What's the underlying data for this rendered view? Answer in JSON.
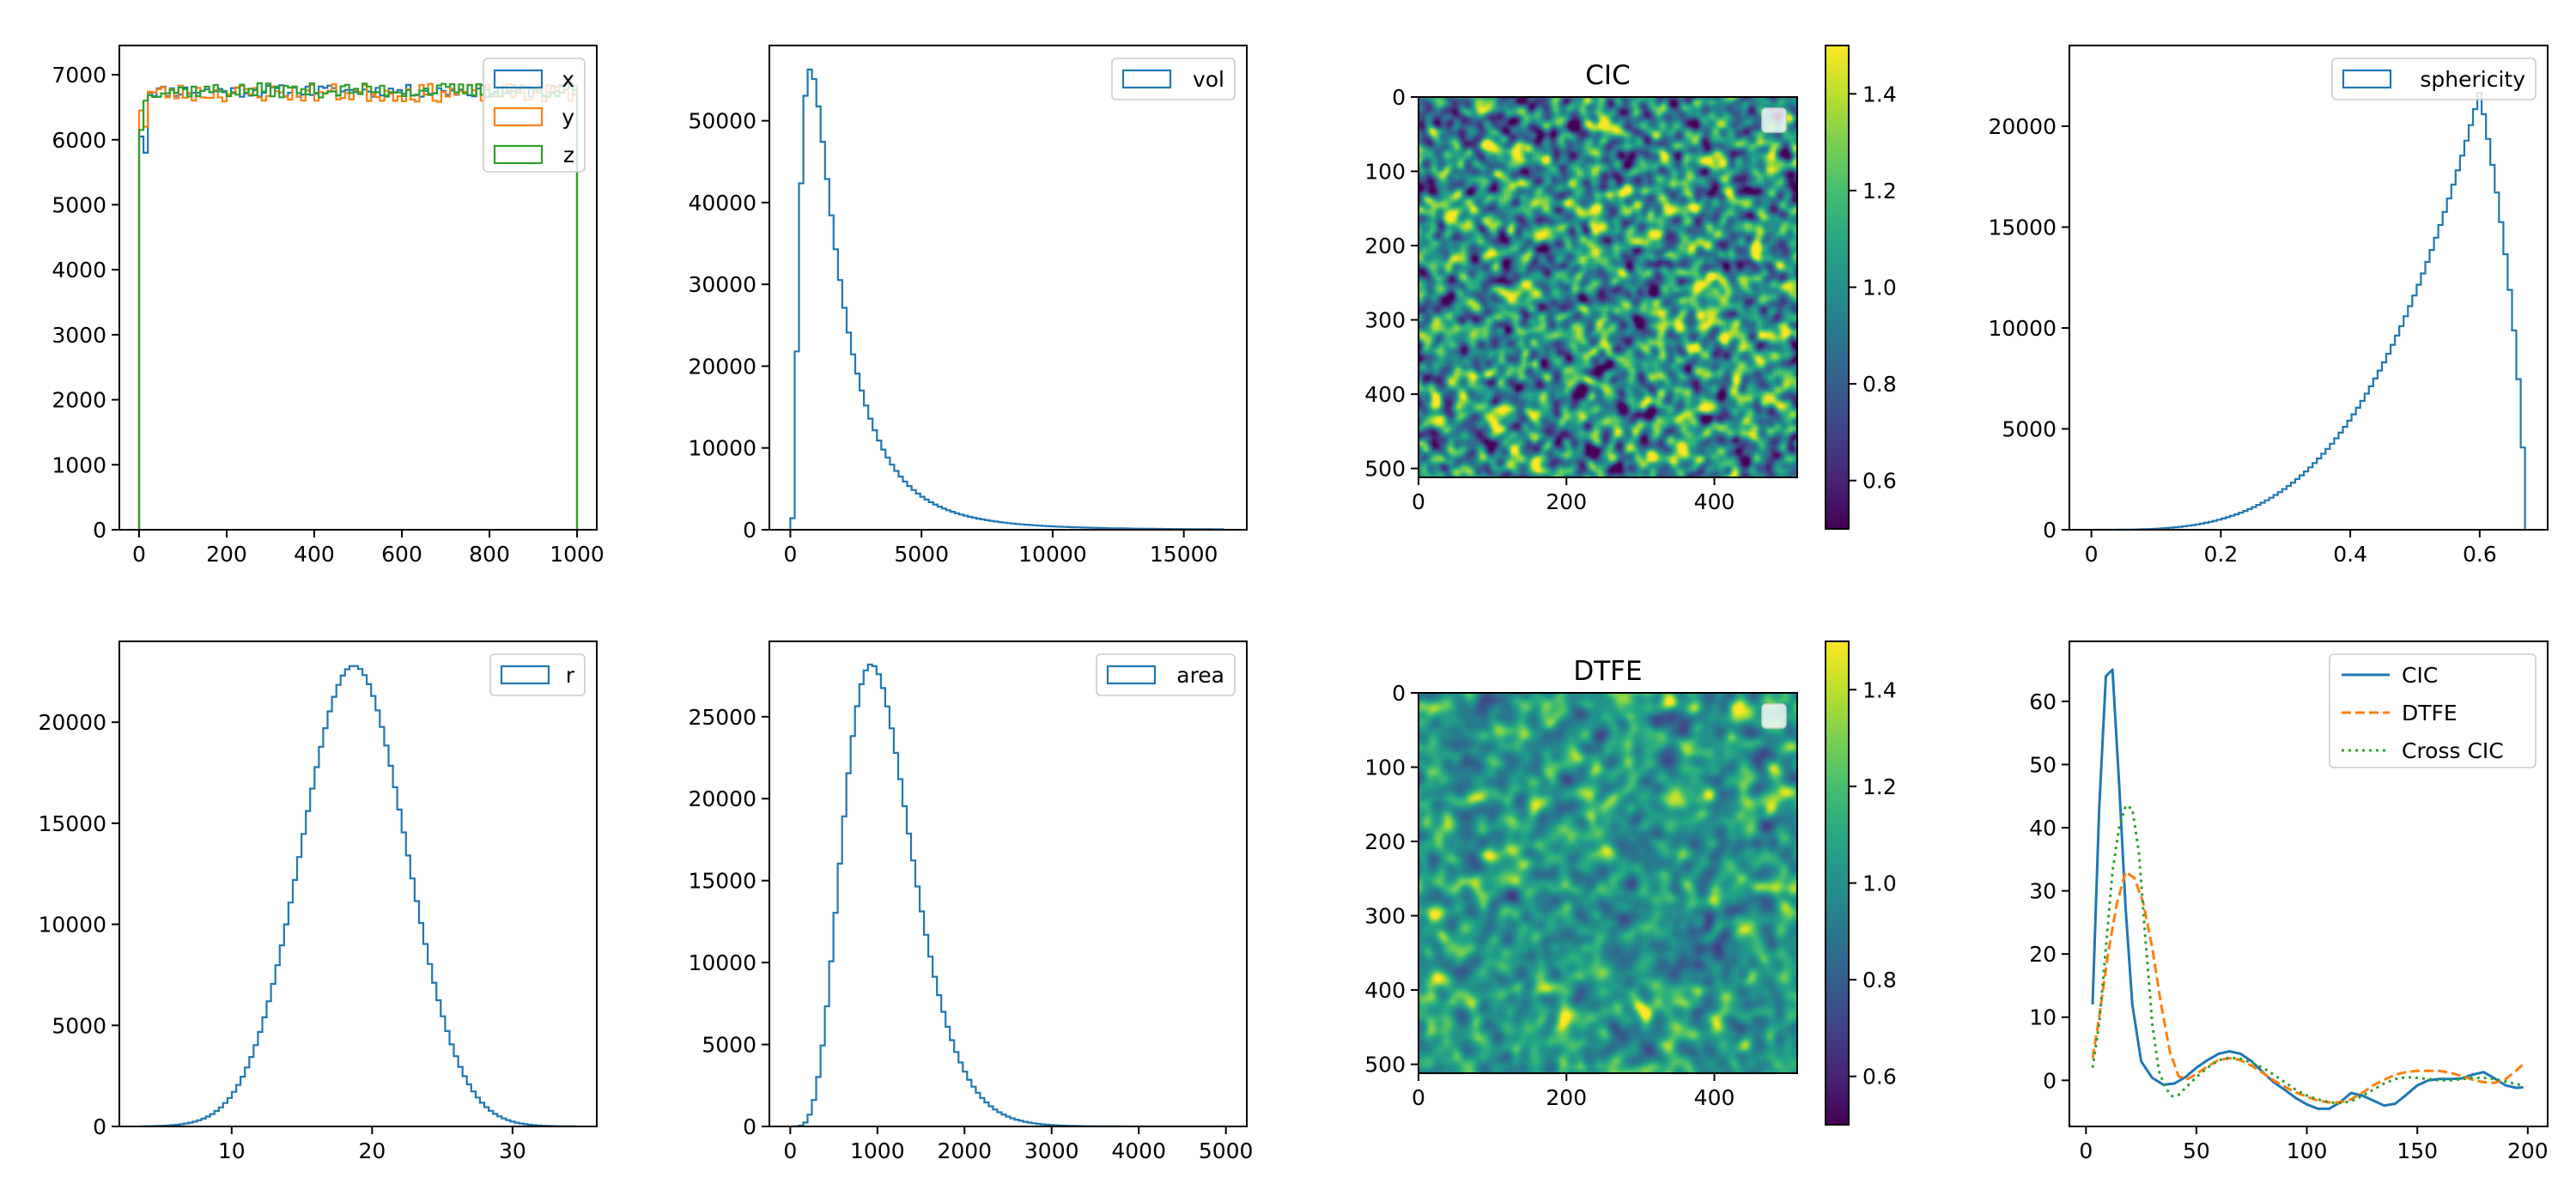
{
  "colors": {
    "blue": "#1f77b4",
    "orange": "#ff7f0e",
    "green": "#2ca02c"
  },
  "colormap": "viridis",
  "chart_data": [
    {
      "id": "p1",
      "type": "histogram-step",
      "series": [
        {
          "name": "x",
          "color": "#1f77b4",
          "x": [
            0,
            1000
          ],
          "plateau": 6750,
          "start": [
            6050,
            5800
          ],
          "noise": 95,
          "seed": 11
        },
        {
          "name": "y",
          "color": "#ff7f0e",
          "x": [
            0,
            1000
          ],
          "plateau": 6720,
          "start": [
            6450,
            6200
          ],
          "noise": 140,
          "seed": 23
        },
        {
          "name": "z",
          "color": "#2ca02c",
          "x": [
            0,
            1000
          ],
          "plateau": 6760,
          "start": [
            6150,
            6600
          ],
          "noise": 110,
          "seed": 37
        }
      ],
      "bins": 100,
      "xlim": [
        -45,
        1045
      ],
      "ylim": [
        0,
        7450
      ],
      "xticks": [
        0,
        200,
        400,
        600,
        800,
        1000
      ],
      "yticks": [
        0,
        1000,
        2000,
        3000,
        4000,
        5000,
        6000,
        7000
      ],
      "legend": "upper right"
    },
    {
      "id": "p2",
      "type": "histogram-step",
      "series": [
        {
          "name": "vol",
          "color": "#1f77b4",
          "x": [
            0,
            16500
          ],
          "shape": "lognormal",
          "peak_x": 500,
          "peak_y": 56300
        }
      ],
      "bins": 100,
      "xlim": [
        -800,
        17400
      ],
      "ylim": [
        0,
        59200
      ],
      "xticks": [
        0,
        5000,
        10000,
        15000
      ],
      "yticks": [
        0,
        10000,
        20000,
        30000,
        40000,
        50000
      ],
      "legend": "upper right"
    },
    {
      "id": "p3",
      "type": "heatmap",
      "title": "CIC",
      "xlim": [
        0,
        512
      ],
      "ylim": [
        512,
        0
      ],
      "xticks": [
        0,
        200,
        400
      ],
      "yticks": [
        0,
        100,
        200,
        300,
        400,
        500
      ],
      "colorbar": {
        "range": [
          0.5,
          1.5
        ],
        "ticks": [
          0.6,
          0.8,
          1.0,
          1.2,
          1.4
        ]
      },
      "field": {
        "mean": 1.0,
        "sd": 0.22,
        "grain": "fine",
        "seed": 101
      },
      "legend": "empty"
    },
    {
      "id": "p4",
      "type": "histogram-step",
      "series": [
        {
          "name": "sphericity",
          "color": "#1f77b4",
          "x": [
            0,
            0.67
          ],
          "shape": "skewed-left",
          "peak_x": 0.6,
          "peak_y": 21700
        }
      ],
      "bins": 100,
      "xlim": [
        -0.034,
        0.705
      ],
      "ylim": [
        0,
        24000
      ],
      "xticks": [
        0.0,
        0.2,
        0.4,
        0.6
      ],
      "yticks": [
        0,
        5000,
        10000,
        15000,
        20000
      ],
      "legend": "upper right"
    },
    {
      "id": "p5",
      "type": "histogram-step",
      "series": [
        {
          "name": "r",
          "color": "#1f77b4",
          "x": [
            3.5,
            34.5
          ],
          "shape": "gaussian",
          "mean": 18.7,
          "sd": 3.75,
          "peak_y": 22800
        }
      ],
      "bins": 100,
      "xlim": [
        2.0,
        36.0
      ],
      "ylim": [
        0,
        24000
      ],
      "xticks": [
        10,
        20,
        30
      ],
      "yticks": [
        0,
        5000,
        10000,
        15000,
        20000
      ],
      "legend": "upper right"
    },
    {
      "id": "p6",
      "type": "histogram-step",
      "series": [
        {
          "name": "area",
          "color": "#1f77b4",
          "x": [
            50,
            5000
          ],
          "shape": "skewed-right",
          "peak_x": 930,
          "peak_y": 28200
        }
      ],
      "bins": 100,
      "xlim": [
        -240,
        5240
      ],
      "ylim": [
        0,
        29600
      ],
      "xticks": [
        0,
        1000,
        2000,
        3000,
        4000,
        5000
      ],
      "yticks": [
        0,
        5000,
        10000,
        15000,
        20000,
        25000
      ],
      "legend": "upper right"
    },
    {
      "id": "p7",
      "type": "heatmap",
      "title": "DTFE",
      "xlim": [
        0,
        512
      ],
      "ylim": [
        512,
        0
      ],
      "xticks": [
        0,
        200,
        400
      ],
      "yticks": [
        0,
        100,
        200,
        300,
        400,
        500
      ],
      "colorbar": {
        "range": [
          0.5,
          1.5
        ],
        "ticks": [
          0.6,
          0.8,
          1.0,
          1.2,
          1.4
        ]
      },
      "field": {
        "mean": 1.03,
        "sd": 0.11,
        "grain": "smooth",
        "seed": 202
      },
      "legend": "empty"
    },
    {
      "id": "p8",
      "type": "line",
      "series": [
        {
          "name": "CIC",
          "color": "#1f77b4",
          "dash": "solid",
          "x": [
            3,
            6,
            9,
            12,
            15,
            18,
            21,
            25,
            30,
            35,
            40,
            45,
            50,
            55,
            60,
            65,
            70,
            75,
            80,
            85,
            90,
            95,
            100,
            105,
            110,
            115,
            120,
            125,
            130,
            135,
            140,
            145,
            150,
            155,
            160,
            165,
            170,
            175,
            180,
            185,
            190,
            195,
            198
          ],
          "y": [
            12,
            43,
            64,
            65,
            47,
            27,
            12,
            3,
            0.4,
            -0.7,
            -0.5,
            0.5,
            2,
            3.2,
            4.2,
            4.6,
            4.2,
            3,
            1.3,
            -0.3,
            -1.5,
            -2.8,
            -3.8,
            -4.5,
            -4.5,
            -3.5,
            -2,
            -2.4,
            -3.2,
            -4,
            -3.7,
            -2.3,
            -0.8,
            0,
            0.2,
            0.2,
            0.3,
            0.9,
            1.3,
            0.3,
            -0.8,
            -1.2,
            -1.1
          ]
        },
        {
          "name": "DTFE",
          "color": "#ff7f0e",
          "dash": "dashed",
          "x": [
            3,
            6,
            10,
            14,
            18,
            22,
            26,
            30,
            34,
            38,
            42,
            46,
            50,
            55,
            60,
            65,
            70,
            75,
            80,
            85,
            90,
            95,
            100,
            105,
            110,
            115,
            120,
            125,
            130,
            135,
            140,
            145,
            150,
            155,
            160,
            165,
            170,
            175,
            180,
            185,
            190,
            195,
            198
          ],
          "y": [
            3.5,
            10,
            20,
            28,
            33,
            32,
            28,
            21,
            12,
            4.5,
            0.6,
            0.2,
            1,
            2.2,
            3.2,
            3.5,
            3.2,
            2.3,
            1.2,
            0,
            -1,
            -1.9,
            -2.6,
            -3.2,
            -3.5,
            -3.5,
            -3,
            -2,
            -0.8,
            0.1,
            0.9,
            1.3,
            1.5,
            1.5,
            1.5,
            1.2,
            0.7,
            0.1,
            -0.3,
            -0.4,
            0.2,
            1.6,
            2.6
          ]
        },
        {
          "name": "Cross CIC",
          "color": "#2ca02c",
          "dash": "dotted",
          "x": [
            3,
            6,
            9,
            12,
            15,
            18,
            21,
            24,
            27,
            30,
            33,
            36,
            39,
            42,
            45,
            50,
            55,
            60,
            65,
            70,
            75,
            80,
            85,
            90,
            95,
            100,
            105,
            110,
            115,
            120,
            125,
            130,
            135,
            140,
            145,
            150,
            155,
            160,
            165,
            170,
            175,
            180,
            185,
            190,
            195,
            198
          ],
          "y": [
            2,
            9,
            21,
            33,
            40,
            43.5,
            43,
            36,
            22,
            9,
            1.5,
            -1.2,
            -2.5,
            -2.3,
            -1.2,
            0.5,
            2,
            3.2,
            3.6,
            3.4,
            2.8,
            2,
            0.9,
            -0.3,
            -1.5,
            -2.4,
            -3,
            -3.5,
            -3.6,
            -3.3,
            -2.5,
            -1.5,
            -0.5,
            0.2,
            0.5,
            0.4,
            0.2,
            0,
            0,
            0.2,
            0.4,
            0.4,
            0.2,
            -0.2,
            -0.6,
            -0.8
          ]
        }
      ],
      "xlim": [
        -7.5,
        209
      ],
      "ylim": [
        -7.3,
        69.5
      ],
      "xticks": [
        0,
        50,
        100,
        150,
        200
      ],
      "yticks": [
        0,
        10,
        20,
        30,
        40,
        50,
        60
      ],
      "legend": "upper right"
    }
  ]
}
